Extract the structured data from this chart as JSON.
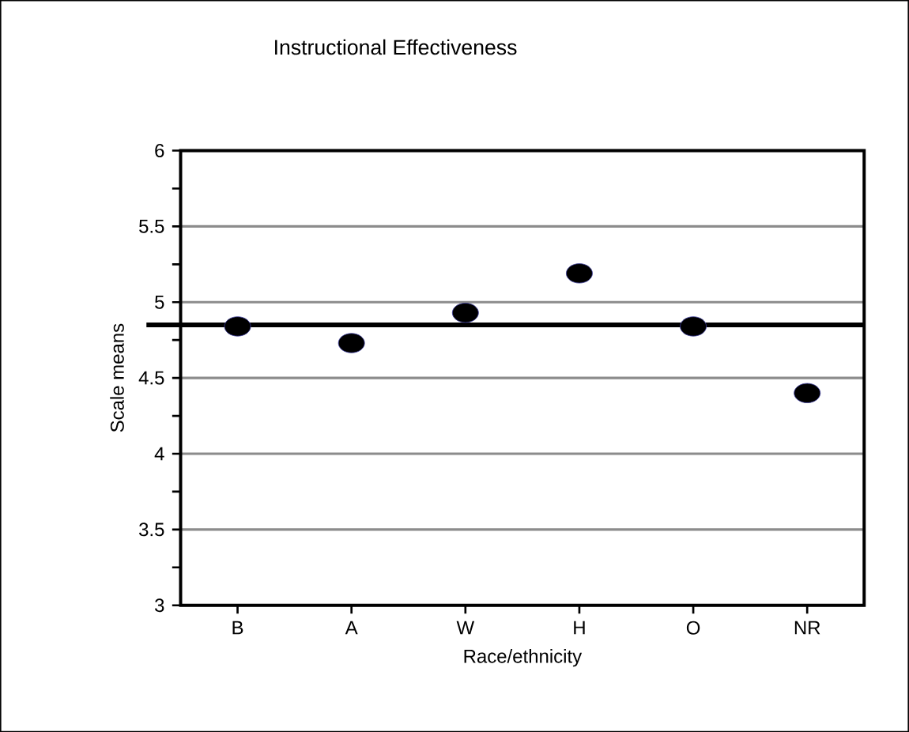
{
  "chart_data": {
    "type": "scatter",
    "title": "Instructional Effectiveness",
    "xlabel": "Race/ethnicity",
    "ylabel": "Scale means",
    "categories": [
      "B",
      "A",
      "W",
      "H",
      "O",
      "NR"
    ],
    "values": [
      4.84,
      4.73,
      4.93,
      5.19,
      4.84,
      4.4
    ],
    "color": "#000000",
    "marker": "circle",
    "ylim": [
      3,
      6
    ],
    "yticks": [
      3,
      3.5,
      4,
      4.5,
      5,
      5.5,
      6
    ],
    "grid": "y",
    "ref_lines": [
      {
        "axis": "y",
        "value": 4.85,
        "color": "#000000"
      }
    ]
  }
}
